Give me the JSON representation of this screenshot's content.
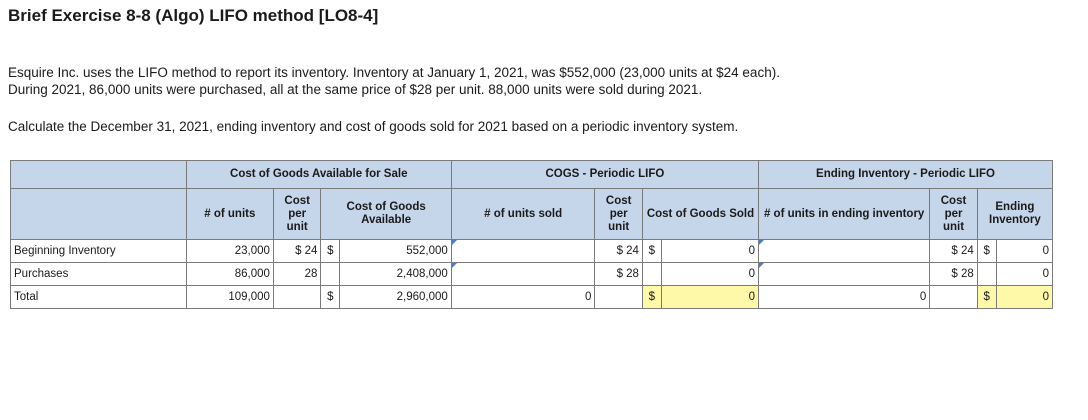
{
  "title": "Brief Exercise 8-8 (Algo) LIFO method [LO8-4]",
  "paragraphs": {
    "p1": "Esquire Inc. uses the LIFO method to report its inventory. Inventory at January 1, 2021, was $552,000 (23,000 units at $24 each).",
    "p2": "During 2021, 86,000 units were purchased, all at the same price of $28 per unit. 88,000 units were sold during 2021.",
    "p3": "Calculate the December 31, 2021, ending inventory and cost of goods sold for 2021 based on a periodic inventory system."
  },
  "table": {
    "groups": {
      "available": "Cost of Goods Available for Sale",
      "cogs": "COGS - Periodic LIFO",
      "ending": "Ending Inventory - Periodic LIFO"
    },
    "columns": {
      "avail_units": "# of units",
      "avail_cost_per_unit": "Cost per unit",
      "avail_cost": "Cost of Goods Available",
      "cogs_units": "# of units sold",
      "cogs_cost_per_unit": "Cost per unit",
      "cogs_cost": "Cost of Goods Sold",
      "end_units": "# of units in ending inventory",
      "end_cost_per_unit": "Cost per unit",
      "end_cost": "Ending Inventory"
    },
    "rows": {
      "beginning": {
        "label": "Beginning Inventory",
        "avail_units": "23,000",
        "avail_cost_per_unit": "$ 24",
        "avail_cost_symbol": "$",
        "avail_cost": "552,000",
        "cogs_units": "",
        "cogs_cost_per_unit": "$ 24",
        "cogs_cost_symbol": "$",
        "cogs_cost": "0",
        "end_units": "",
        "end_cost_per_unit": "$ 24",
        "end_cost_symbol": "$",
        "end_cost": "0"
      },
      "purchases": {
        "label": "Purchases",
        "avail_units": "86,000",
        "avail_cost_per_unit": "28",
        "avail_cost": "2,408,000",
        "cogs_units": "",
        "cogs_cost_per_unit": "$ 28",
        "cogs_cost": "0",
        "end_units": "",
        "end_cost_per_unit": "$ 28",
        "end_cost": "0"
      },
      "total": {
        "label": "Total",
        "avail_units": "109,000",
        "avail_cost_symbol": "$",
        "avail_cost": "2,960,000",
        "cogs_units": "0",
        "cogs_cost_symbol": "$",
        "cogs_cost": "0",
        "end_units": "0",
        "end_cost_symbol": "$",
        "end_cost": "0"
      }
    }
  }
}
